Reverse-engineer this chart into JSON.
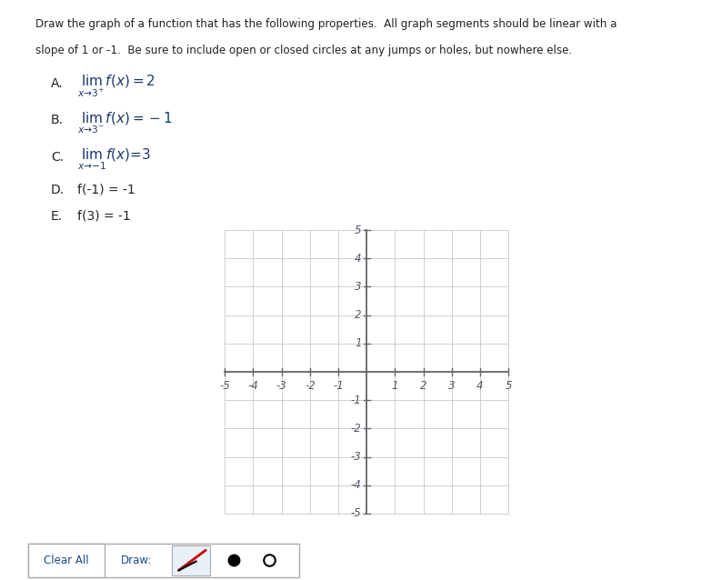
{
  "title_line1": "Draw the graph of a function that has the following properties.  All graph segments should be linear with a",
  "title_line2": "slope of 1 or -1.  Be sure to include open or closed circles at any jumps or holes, but nowhere else.",
  "cond_A_label": "A.",
  "cond_A_math": "$\\lim_{x \\to 3^+} f(x) = 2$",
  "cond_B_label": "B.",
  "cond_B_math": "$\\lim_{x \\to 3^-} f(x) = -1$",
  "cond_C_label": "C.",
  "cond_C_math": "$\\lim_{x \\to -1} f(x) = 3$",
  "cond_D_label": "D.",
  "cond_D_text": "f(-1) = -1",
  "cond_E_label": "E.",
  "cond_E_text": "f(3) = -1",
  "grid_color": "#c8c8c8",
  "axis_color": "#666666",
  "tick_color": "#555566",
  "background_color": "#ffffff",
  "text_color": "#222222",
  "math_color": "#1a3a6b",
  "toolbar_bg": "#e8f0f8",
  "toolbar_border": "#aaaaaa",
  "xlim": [
    -5.5,
    5.5
  ],
  "ylim": [
    -5.5,
    5.5
  ],
  "tick_vals": [
    -5,
    -4,
    -3,
    -2,
    -1,
    1,
    2,
    3,
    4,
    5
  ],
  "button_clear": "Clear All",
  "button_draw": "Draw:"
}
